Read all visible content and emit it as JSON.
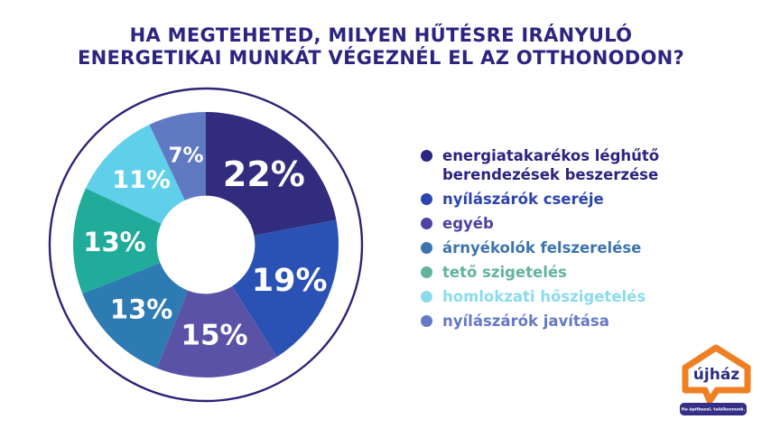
{
  "title": {
    "line1": "HA MEGTEHETED, MILYEN HŰTÉSRE IRÁNYULÓ",
    "line2": "ENERGETIKAI MUNKÁT VÉGEZNÉL EL AZ OTTHONODON?",
    "color": "#2B2580"
  },
  "colors": {
    "background": "#FFFFFF",
    "ring": "#2B2477",
    "slice_label": "#FFFFFF"
  },
  "chart_data": {
    "type": "pie",
    "subtype": "donut",
    "title": "HA MEGTEHETED, MILYEN HŰTÉSRE IRÁNYULÓ ENERGETIKAI MUNKÁT VÉGEZNÉL EL AZ OTTHONODON?",
    "direction": "clockwise",
    "start_angle_deg": 0,
    "unit": "%",
    "donut_hole_ratio": 0.37,
    "legend_position": "right",
    "categories": [
      "energiatakarékos léghűtő berendezések beszerzése",
      "nyílászárók cseréje",
      "egyéb",
      "árnyékolók felszerelése",
      "tető szigetelés",
      "homlokzati hőszigetelés",
      "nyílászárók javítása"
    ],
    "values": [
      22,
      19,
      15,
      13,
      13,
      11,
      7
    ],
    "labels": [
      "22%",
      "19%",
      "15%",
      "13%",
      "13%",
      "11%",
      "7%"
    ],
    "segment_colors": [
      "#312C7E",
      "#2A52B4",
      "#5A52A7",
      "#2E7BB3",
      "#21AB9A",
      "#5FCFEA",
      "#6079C3"
    ]
  },
  "legend": {
    "items": [
      {
        "label": "energiatakarékos léghűtő berendezések beszerzése",
        "color": "#2B2480"
      },
      {
        "label": "nyílászárók cseréje",
        "color": "#2C44AE"
      },
      {
        "label": "egyéb",
        "color": "#4C42A0"
      },
      {
        "label": "árnyékolók felszerelése",
        "color": "#3D74AE"
      },
      {
        "label": "tető szigetelés",
        "color": "#62B39D"
      },
      {
        "label": "homlokzati hőszigetelés",
        "color": "#8BDBEC"
      },
      {
        "label": "nyílászárók javítása",
        "color": "#6579C5"
      }
    ]
  },
  "logo": {
    "name": "újház",
    "slogan": "Ha építkezel, találkoznunk.",
    "house_color": "#EF7F23",
    "name_color": "#2B2F85",
    "banner_color": "#362F87",
    "slogan_color": "#FFFFFF"
  }
}
